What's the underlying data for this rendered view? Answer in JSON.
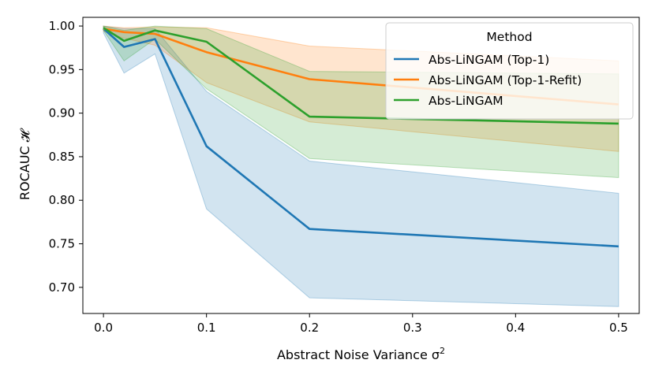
{
  "chart_data": {
    "type": "line",
    "xlabel_text": "Abstract Noise Variance σ",
    "xlabel_sup": "2",
    "ylabel": "ROCAUC 𝓗",
    "xlim": [
      -0.02,
      0.52
    ],
    "ylim": [
      0.67,
      1.01
    ],
    "x": [
      0.0,
      0.02,
      0.05,
      0.1,
      0.2,
      0.5
    ],
    "xticks": [
      0.0,
      0.1,
      0.2,
      0.3,
      0.4,
      0.5
    ],
    "xtick_labels": [
      "0.0",
      "0.1",
      "0.2",
      "0.3",
      "0.4",
      "0.5"
    ],
    "yticks": [
      0.7,
      0.75,
      0.8,
      0.85,
      0.9,
      0.95,
      1.0
    ],
    "ytick_labels": [
      "0.70",
      "0.75",
      "0.80",
      "0.85",
      "0.90",
      "0.95",
      "1.00"
    ],
    "legend": {
      "title": "Method",
      "placement": "top-right"
    },
    "series": [
      {
        "name": "Abs-LiNGAM (Top-1)",
        "color": "#1f77b4",
        "values": [
          0.997,
          0.976,
          0.985,
          0.862,
          0.767,
          0.747
        ],
        "lower": [
          0.992,
          0.946,
          0.968,
          0.79,
          0.688,
          0.678
        ],
        "upper": [
          1.0,
          0.997,
          0.997,
          0.925,
          0.845,
          0.808
        ]
      },
      {
        "name": "Abs-LiNGAM (Top-1-Refit)",
        "color": "#ff7f0e",
        "values": [
          0.997,
          0.993,
          0.991,
          0.97,
          0.939,
          0.91
        ],
        "lower": [
          0.994,
          0.986,
          0.978,
          0.935,
          0.89,
          0.856
        ],
        "upper": [
          1.0,
          0.998,
          0.999,
          0.998,
          0.977,
          0.96
        ]
      },
      {
        "name": "Abs-LiNGAM",
        "color": "#2ca02c",
        "values": [
          0.998,
          0.983,
          0.995,
          0.982,
          0.896,
          0.888
        ],
        "lower": [
          0.995,
          0.96,
          0.985,
          0.928,
          0.848,
          0.826
        ],
        "upper": [
          1.0,
          0.995,
          1.0,
          0.997,
          0.948,
          0.945
        ]
      }
    ]
  }
}
